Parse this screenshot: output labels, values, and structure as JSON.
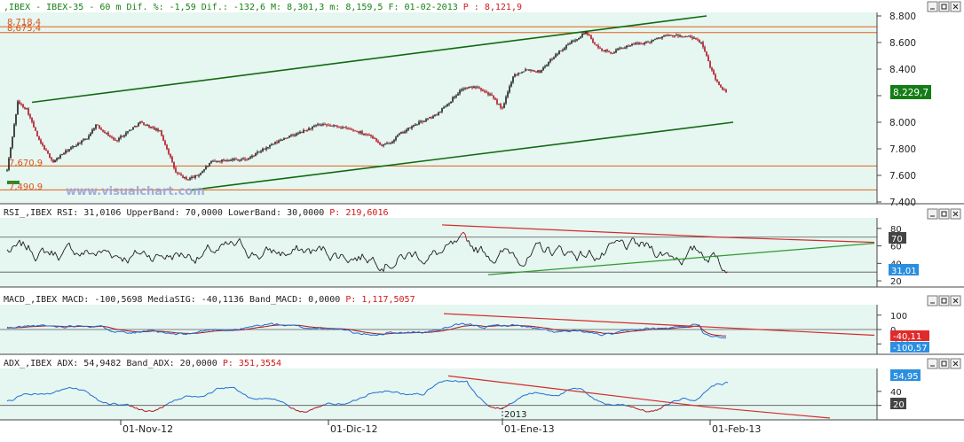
{
  "colors": {
    "plot_bg": "#e6f6f0",
    "axis_bg": "#ffffff",
    "bull": "#1d1d1d",
    "bear": "#b01020",
    "green_line": "#0f6b0f",
    "orange_level": "#e0601a",
    "red_line": "#d22c2c",
    "blue": "#1a6fd6",
    "label_green": "#157d15",
    "label_blue": "#2b8fe0",
    "label_red": "#e02b2b",
    "header_green": "#148214",
    "header_red": "#d01818",
    "header_black": "#222222"
  },
  "panels": {
    "price": {
      "header": [
        {
          "text": ",IBEX - IBEX-35 -  60 m Dif. %: -1,59 Dif.: -132,6 M: 8,301,3 m: 8,159,5 F: 01-02-2013",
          "color": "header_green"
        },
        {
          "text": " P : 8,121,9",
          "color": "header_red"
        }
      ],
      "watermark": "www.visualchart.com",
      "y_ticks": [
        "8.800",
        "8.600",
        "8.400",
        "8.200",
        "8.000",
        "7.800",
        "7.600",
        "7.400"
      ],
      "last_label": "8.229,7",
      "level_labels": [
        "8,718,4",
        "8,675,4",
        "7,670,9",
        "7,490,9"
      ]
    },
    "rsi": {
      "header": [
        {
          "text": "RSI_,IBEX RSI: 31,0106 UpperBand: 70,0000 LowerBand: 30,0000",
          "color": "header_black"
        },
        {
          "text": " P: 219,6016",
          "color": "header_red"
        }
      ],
      "y_ticks": [
        "80",
        "60",
        "40",
        "20"
      ],
      "labels": [
        "70",
        "31,01"
      ]
    },
    "macd": {
      "header": [
        {
          "text": "MACD_,IBEX MACD: -100,5698 MediaSIG: -40,1136 Band_MACD: 0,0000",
          "color": "header_black"
        },
        {
          "text": " P: 1,117,5057",
          "color": "header_red"
        }
      ],
      "y_ticks": [
        "100",
        "0",
        "-100"
      ],
      "labels": [
        "-40,11",
        "-100,57"
      ]
    },
    "adx": {
      "header": [
        {
          "text": "ADX_,IBEX ADX: 54,9482 Band_ADX: 20,0000",
          "color": "header_black"
        },
        {
          "text": " P: 351,3554",
          "color": "header_red"
        }
      ],
      "y_ticks": [
        "40",
        "20"
      ],
      "labels": [
        "54,95",
        "20"
      ]
    }
  },
  "x_axis": {
    "labels": [
      "01-Nov-12",
      "01-Dic-12",
      "01-Ene-13",
      "01-Feb-13"
    ],
    "year_label": "2013"
  },
  "chart_data": [
    {
      "type": "candlestick",
      "series": [
        {
          "name": "IBEX-35"
        }
      ],
      "ylim": [
        7400,
        8800
      ],
      "keypoints": [
        [
          0,
          7640
        ],
        [
          12,
          8150
        ],
        [
          22,
          8100
        ],
        [
          36,
          7860
        ],
        [
          52,
          7700
        ],
        [
          62,
          7760
        ],
        [
          80,
          7840
        ],
        [
          90,
          7880
        ],
        [
          100,
          7980
        ],
        [
          122,
          7860
        ],
        [
          150,
          8000
        ],
        [
          172,
          7930
        ],
        [
          182,
          7770
        ],
        [
          190,
          7620
        ],
        [
          202,
          7570
        ],
        [
          215,
          7600
        ],
        [
          230,
          7700
        ],
        [
          250,
          7720
        ],
        [
          270,
          7720
        ],
        [
          290,
          7800
        ],
        [
          312,
          7880
        ],
        [
          330,
          7920
        ],
        [
          350,
          7980
        ],
        [
          372,
          7970
        ],
        [
          390,
          7940
        ],
        [
          410,
          7900
        ],
        [
          422,
          7820
        ],
        [
          432,
          7850
        ],
        [
          442,
          7910
        ],
        [
          462,
          7990
        ],
        [
          482,
          8050
        ],
        [
          498,
          8150
        ],
        [
          512,
          8250
        ],
        [
          530,
          8270
        ],
        [
          545,
          8200
        ],
        [
          558,
          8100
        ],
        [
          570,
          8350
        ],
        [
          585,
          8400
        ],
        [
          600,
          8380
        ],
        [
          618,
          8510
        ],
        [
          635,
          8600
        ],
        [
          652,
          8680
        ],
        [
          665,
          8560
        ],
        [
          680,
          8520
        ],
        [
          700,
          8580
        ],
        [
          720,
          8600
        ],
        [
          740,
          8650
        ],
        [
          756,
          8650
        ],
        [
          770,
          8640
        ],
        [
          782,
          8600
        ],
        [
          792,
          8420
        ],
        [
          800,
          8300
        ],
        [
          810,
          8220
        ]
      ],
      "levels": [
        8718.4,
        8675.4,
        7670.9,
        7490.9
      ],
      "last": 8229.7,
      "channel": {
        "upper": [
          [
            28,
            8150
          ],
          [
            788,
            8800
          ]
        ],
        "lower": [
          [
            208,
            7490
          ],
          [
            818,
            8000
          ]
        ]
      }
    },
    {
      "type": "line",
      "series": [
        {
          "name": "RSI"
        }
      ],
      "ylim": [
        15,
        90
      ],
      "bands": [
        70,
        30
      ],
      "base": 52,
      "amp": 22,
      "last": 31.01,
      "trend_red": [
        [
          498,
          84
        ],
        [
          810,
          70
        ]
      ],
      "trend_red2": [
        [
          810,
          70
        ],
        [
          985,
          64
        ]
      ],
      "trend_green": [
        [
          550,
          27
        ],
        [
          985,
          63
        ]
      ]
    },
    {
      "type": "line",
      "series": [
        {
          "name": "MACD"
        },
        {
          "name": "MediaSIG"
        }
      ],
      "ylim": [
        -160,
        160
      ],
      "last": [
        -100.57,
        -40.11
      ],
      "trend_red": [
        [
          500,
          110
        ],
        [
          985,
          -40
        ]
      ]
    },
    {
      "type": "line",
      "series": [
        {
          "name": "ADX"
        }
      ],
      "ylim": [
        2,
        70
      ],
      "band": 20,
      "last": 54.95,
      "trend_red": [
        [
          505,
          62
        ],
        [
          795,
          18
        ]
      ],
      "trend_red2": [
        [
          795,
          18
        ],
        [
          935,
          2
        ]
      ]
    }
  ]
}
